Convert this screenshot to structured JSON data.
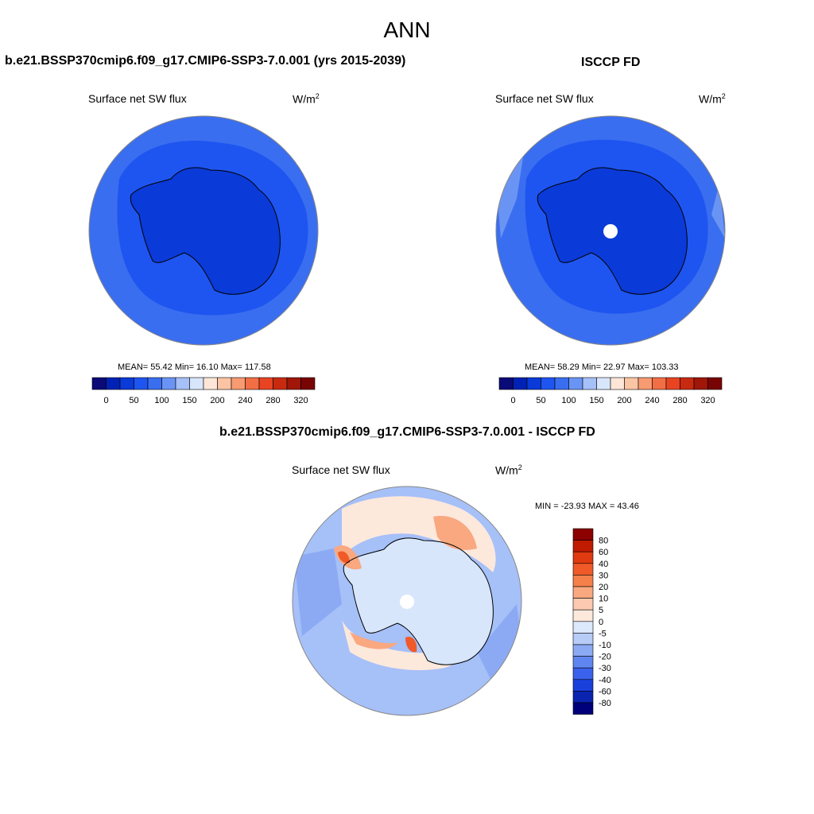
{
  "page": {
    "title": "ANN"
  },
  "panels": {
    "model": {
      "title": "b.e21.BSSP370cmip6.f09_g17.CMIP6-SSP3-7.0.001 (yrs 2015-2039)",
      "variable": "Surface net SW flux",
      "units": "W/m",
      "units_sup": "2",
      "stats": "MEAN=  55.42  Min=  16.10  Max= 117.58"
    },
    "obs": {
      "title": "ISCCP FD",
      "variable": "Surface net SW flux",
      "units": "W/m",
      "units_sup": "2",
      "stats": "MEAN=  58.29  Min=  22.97  Max= 103.33"
    },
    "diff": {
      "title": "b.e21.BSSP370cmip6.f09_g17.CMIP6-SSP3-7.0.001 - ISCCP FD",
      "variable": "Surface net SW flux",
      "units": "W/m",
      "units_sup": "2",
      "stats": "MIN = -23.93 MAX =  43.46"
    }
  },
  "colorbar_main": {
    "colors": [
      "#0a0a78",
      "#0022b4",
      "#0a3ad8",
      "#1e55f0",
      "#3a6ef0",
      "#6a94f4",
      "#a6c0f8",
      "#d8e6fc",
      "#fde6d8",
      "#fbc4a4",
      "#f89a72",
      "#f26e44",
      "#e84422",
      "#c82a10",
      "#a01608",
      "#780404"
    ],
    "labels": [
      "0",
      "50",
      "100",
      "150",
      "200",
      "240",
      "280",
      "320"
    ]
  },
  "colorbar_diff": {
    "colors": [
      "#8c0000",
      "#c01a00",
      "#e03a10",
      "#f05a28",
      "#f5804a",
      "#f9a880",
      "#fccab0",
      "#fde8dc",
      "#dce8fc",
      "#b8ccf8",
      "#8caaf4",
      "#5f86f0",
      "#3a62ec",
      "#1a40dc",
      "#0a24b0",
      "#00007a"
    ],
    "labels": [
      "80",
      "60",
      "40",
      "30",
      "20",
      "10",
      "5",
      "0",
      "-5",
      "-10",
      "-20",
      "-30",
      "-40",
      "-60",
      "-80"
    ]
  },
  "map_colors": {
    "model_ocean_far": "#3a6ef0",
    "model_ocean_mid": "#1e55f0",
    "model_land": "#0a3ad8",
    "obs_ocean_far": "#3a6ef0",
    "obs_ocean_mid": "#1e55f0",
    "obs_land": "#0a3ad8",
    "obs_edge": "#6a94f4",
    "diff_base": "#a6c0f8",
    "diff_light": "#d8e6fc",
    "diff_mid": "#8caaf4",
    "diff_warm1": "#fde8dc",
    "diff_warm2": "#f9a880",
    "diff_warm3": "#f05a28"
  }
}
